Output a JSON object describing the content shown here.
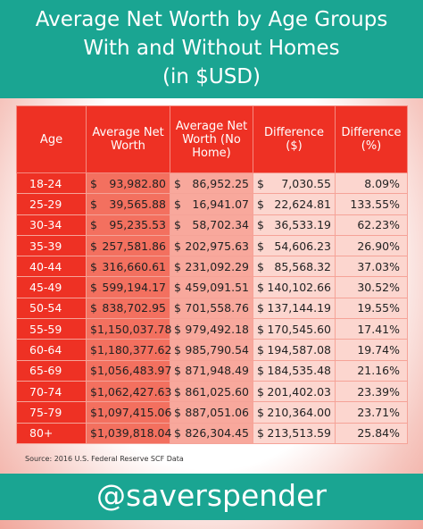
{
  "header": {
    "title_lines": [
      "Average Net Worth by Age Groups",
      "With and Without Homes",
      "(in $USD)"
    ]
  },
  "table": {
    "columns": [
      "Age",
      "Average Net Worth",
      "Average Net Worth (No Home)",
      "Difference ($)",
      "Difference (%)"
    ],
    "rows": [
      [
        "18-24",
        [
          "$",
          "93,982.80"
        ],
        [
          "$",
          "86,952.25"
        ],
        [
          "$",
          "7,030.55"
        ],
        "8.09%"
      ],
      [
        "25-29",
        [
          "$",
          "39,565.88"
        ],
        [
          "$",
          "16,941.07"
        ],
        [
          "$",
          "22,624.81"
        ],
        "133.55%"
      ],
      [
        "30-34",
        [
          "$",
          "95,235.53"
        ],
        [
          "$",
          "58,702.34"
        ],
        [
          "$",
          "36,533.19"
        ],
        "62.23%"
      ],
      [
        "35-39",
        [
          "$",
          "257,581.86"
        ],
        [
          "$",
          "202,975.63"
        ],
        [
          "$",
          "54,606.23"
        ],
        "26.90%"
      ],
      [
        "40-44",
        [
          "$",
          "316,660.61"
        ],
        [
          "$",
          "231,092.29"
        ],
        [
          "$",
          "85,568.32"
        ],
        "37.03%"
      ],
      [
        "45-49",
        [
          "$",
          "599,194.17"
        ],
        [
          "$",
          "459,091.51"
        ],
        [
          "$",
          "140,102.66"
        ],
        "30.52%"
      ],
      [
        "50-54",
        [
          "$",
          "838,702.95"
        ],
        [
          "$",
          "701,558.76"
        ],
        [
          "$",
          "137,144.19"
        ],
        "19.55%"
      ],
      [
        "55-59",
        [
          "$",
          "1,150,037.78"
        ],
        [
          "$",
          "979,492.18"
        ],
        [
          "$",
          "170,545.60"
        ],
        "17.41%"
      ],
      [
        "60-64",
        [
          "$",
          "1,180,377.62"
        ],
        [
          "$",
          "985,790.54"
        ],
        [
          "$",
          "194,587.08"
        ],
        "19.74%"
      ],
      [
        "65-69",
        [
          "$",
          "1,056,483.97"
        ],
        [
          "$",
          "871,948.49"
        ],
        [
          "$",
          "184,535.48"
        ],
        "21.16%"
      ],
      [
        "70-74",
        [
          "$",
          "1,062,427.63"
        ],
        [
          "$",
          "861,025.60"
        ],
        [
          "$",
          "201,402.03"
        ],
        "23.39%"
      ],
      [
        "75-79",
        [
          "$",
          "1,097,415.06"
        ],
        [
          "$",
          "887,051.06"
        ],
        [
          "$",
          "210,364.00"
        ],
        "23.71%"
      ],
      [
        "80+",
        [
          "$",
          "1,039,818.04"
        ],
        [
          "$",
          "826,304.45"
        ],
        [
          "$",
          "213,513.59"
        ],
        "25.84%"
      ]
    ]
  },
  "source": "Source: 2016 U.S. Federal Reserve SCF Data",
  "footer": {
    "handle": "@saverspender"
  }
}
